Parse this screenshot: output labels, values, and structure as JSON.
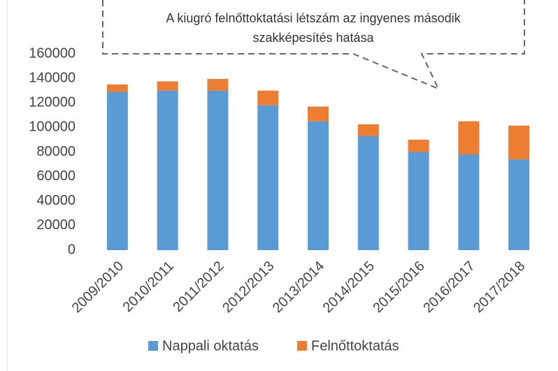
{
  "chart_data": {
    "type": "stacked_bar",
    "annotation": [
      "A kiugró felnőttoktatási létszám az ingyenes második",
      "szakképesítés hatása"
    ],
    "categories": [
      "2009/2010",
      "2010/2011",
      "2011/2012",
      "2012/2013",
      "2013/2014",
      "2014/2015",
      "2015/2016",
      "2016/2017",
      "2017/2018"
    ],
    "series": [
      {
        "name": "Nappali oktatás",
        "color": "#5b9bd5",
        "values": [
          129000,
          130000,
          130000,
          118000,
          105000,
          93000,
          80000,
          78000,
          74000
        ]
      },
      {
        "name": "Felnőttoktatás",
        "color": "#ed7d31",
        "values": [
          6000,
          7500,
          9500,
          12000,
          12000,
          9500,
          10000,
          27000,
          27500
        ]
      }
    ],
    "ylim": [
      0,
      160000
    ],
    "yticks": [
      0,
      20000,
      40000,
      60000,
      80000,
      100000,
      120000,
      140000,
      160000
    ],
    "grid": false,
    "legend": "bottom"
  }
}
